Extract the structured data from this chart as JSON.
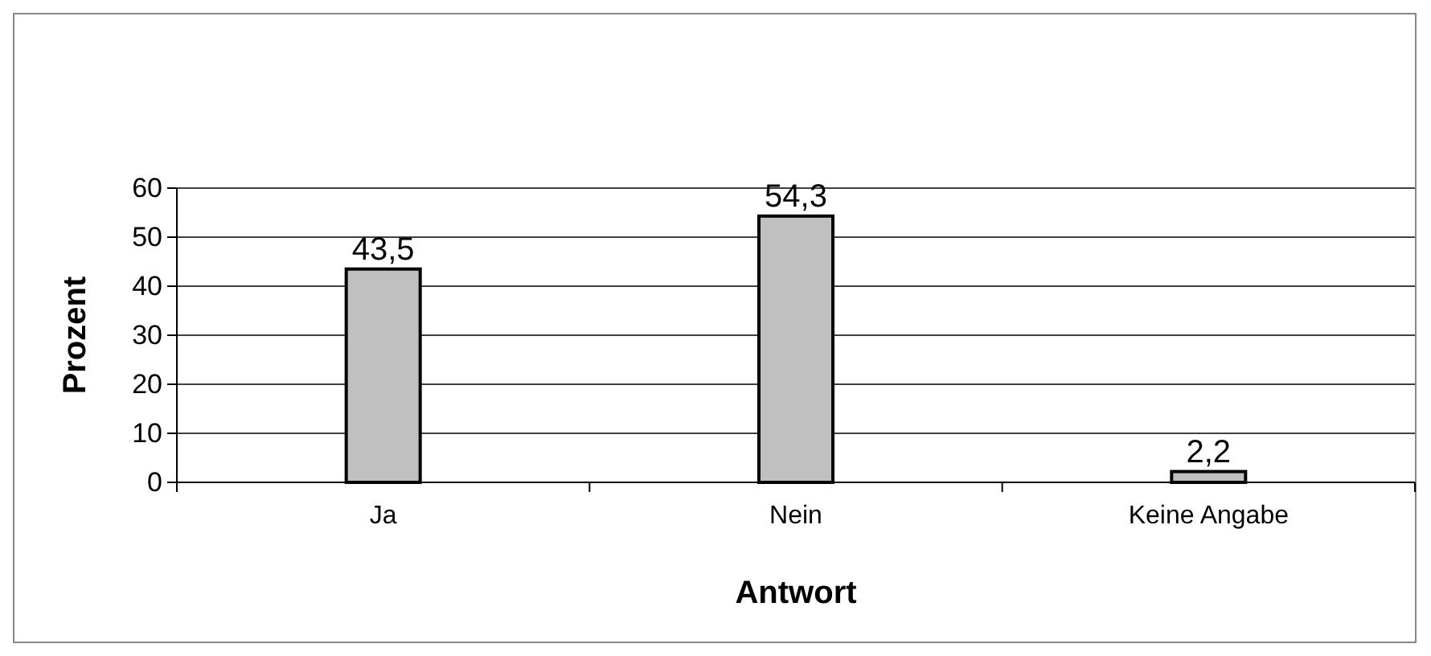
{
  "chart_data": {
    "type": "bar",
    "xlabel": "Antwort",
    "ylabel": "Prozent",
    "categories": [
      "Ja",
      "Nein",
      "Keine Angabe"
    ],
    "values": [
      43.5,
      54.3,
      2.2
    ],
    "value_labels": [
      "43,5",
      "54,3",
      "2,2"
    ],
    "color": "#c0c0c0",
    "ylim": [
      0,
      60
    ],
    "yticks": [
      0,
      10,
      20,
      30,
      40,
      50,
      60
    ],
    "grid": "y"
  }
}
